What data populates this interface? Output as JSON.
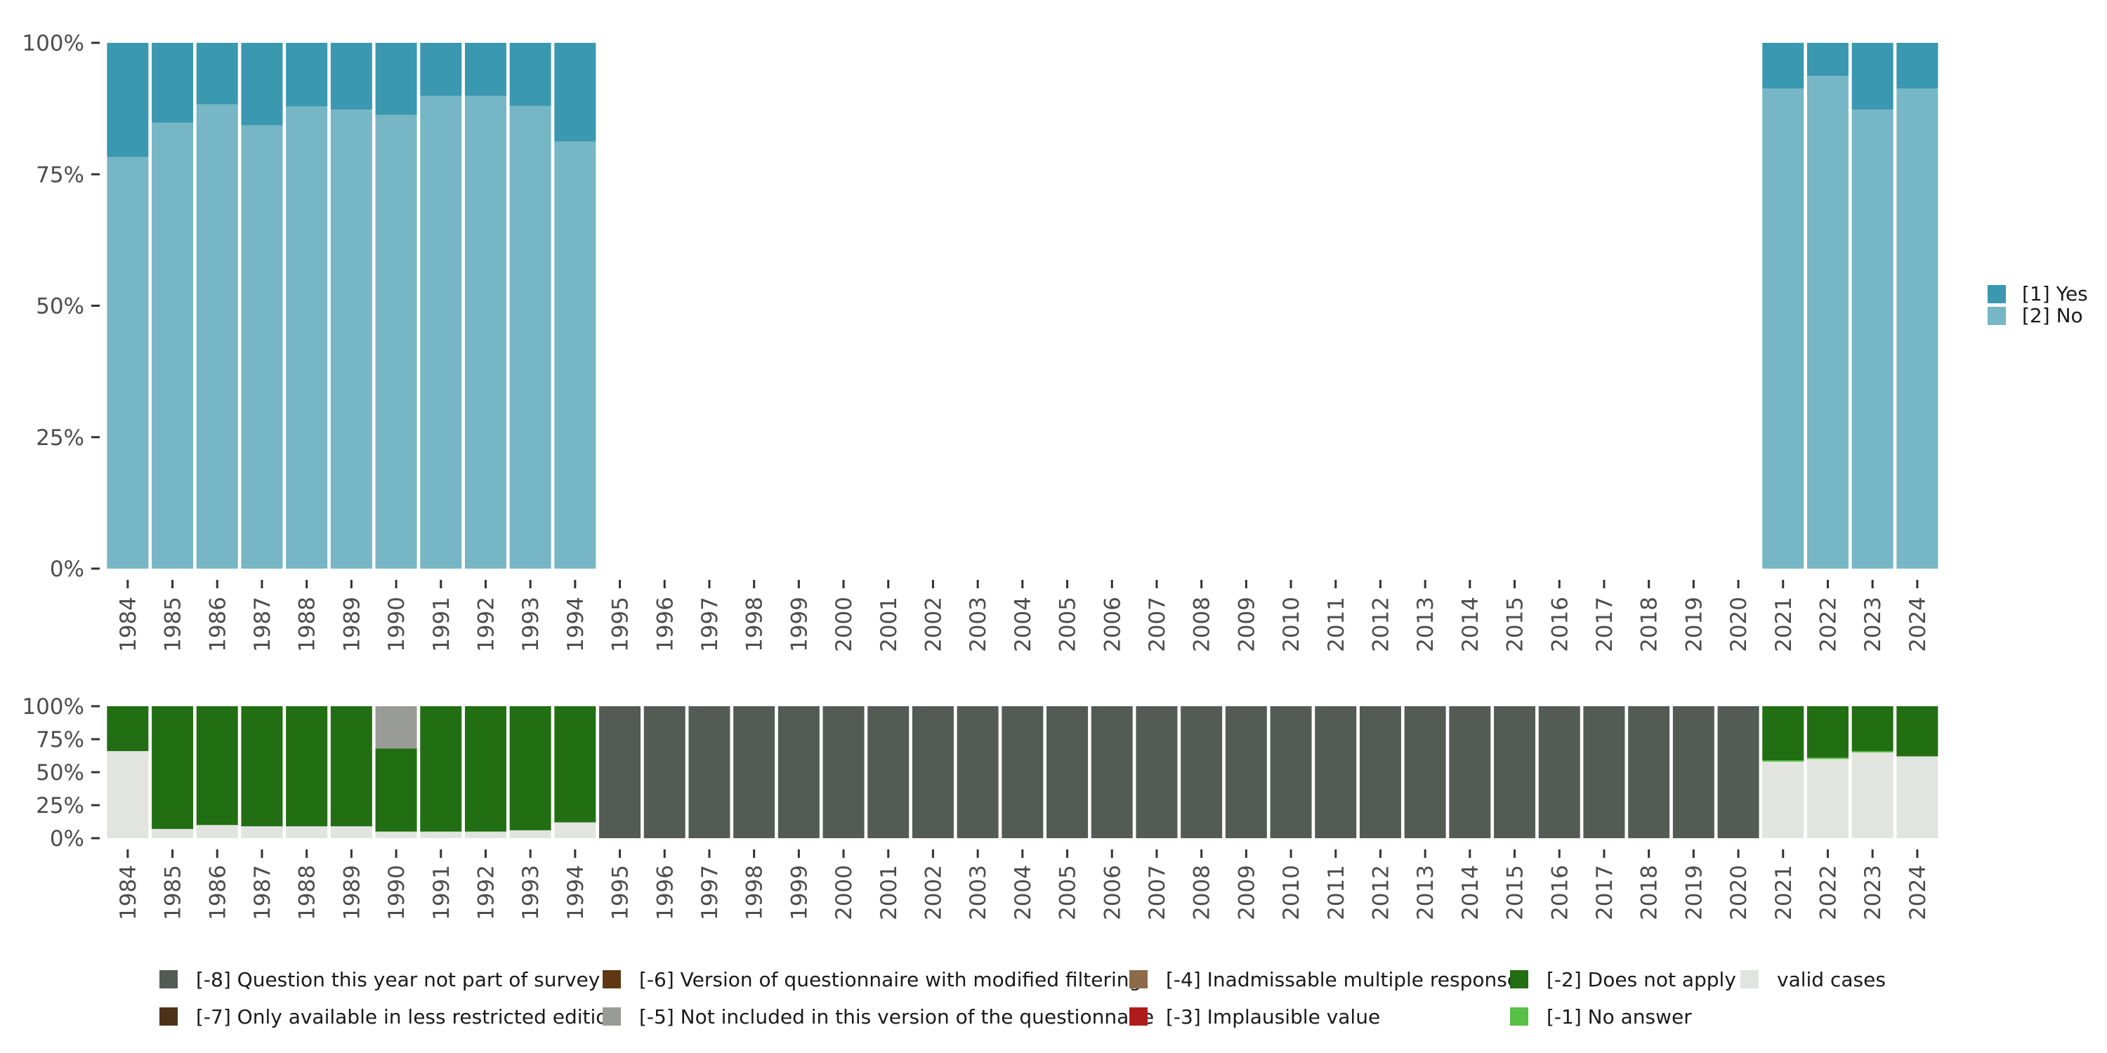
{
  "chart_data": [
    {
      "type": "bar",
      "stacked": true,
      "title": "",
      "xlabel": "",
      "ylabel": "",
      "categories": [
        "1984",
        "1985",
        "1986",
        "1987",
        "1988",
        "1989",
        "1990",
        "1991",
        "1992",
        "1993",
        "1994",
        "1995",
        "1996",
        "1997",
        "1998",
        "1999",
        "2000",
        "2001",
        "2002",
        "2003",
        "2004",
        "2005",
        "2006",
        "2007",
        "2008",
        "2009",
        "2010",
        "2011",
        "2012",
        "2013",
        "2014",
        "2015",
        "2016",
        "2017",
        "2018",
        "2019",
        "2020",
        "2021",
        "2022",
        "2023",
        "2024"
      ],
      "ylim": [
        0,
        100
      ],
      "y_ticks": [
        0,
        25,
        50,
        75,
        100
      ],
      "y_tick_labels": [
        "0%",
        "25%",
        "50%",
        "75%",
        "100%"
      ],
      "series": [
        {
          "name": "[2] No",
          "color": "#76b6c5",
          "values": [
            78.3,
            84.8,
            88.3,
            84.3,
            87.9,
            87.3,
            86.3,
            89.9,
            89.9,
            88.0,
            81.2,
            null,
            null,
            null,
            null,
            null,
            null,
            null,
            null,
            null,
            null,
            null,
            null,
            null,
            null,
            null,
            null,
            null,
            null,
            null,
            null,
            null,
            null,
            null,
            null,
            null,
            null,
            91.3,
            93.7,
            87.3,
            91.3
          ]
        },
        {
          "name": "[1] Yes",
          "color": "#3a98b0",
          "values": [
            21.7,
            15.2,
            11.7,
            15.7,
            12.1,
            12.7,
            13.7,
            10.1,
            10.1,
            12.0,
            18.8,
            null,
            null,
            null,
            null,
            null,
            null,
            null,
            null,
            null,
            null,
            null,
            null,
            null,
            null,
            null,
            null,
            null,
            null,
            null,
            null,
            null,
            null,
            null,
            null,
            null,
            null,
            8.7,
            6.3,
            12.7,
            8.7
          ]
        }
      ],
      "legend": {
        "position": "right",
        "entries": [
          {
            "label": "[1] Yes",
            "color": "#3a98b0"
          },
          {
            "label": "[2] No",
            "color": "#76b6c5"
          }
        ]
      }
    },
    {
      "type": "bar",
      "stacked": true,
      "title": "",
      "xlabel": "",
      "ylabel": "",
      "categories": [
        "1984",
        "1985",
        "1986",
        "1987",
        "1988",
        "1989",
        "1990",
        "1991",
        "1992",
        "1993",
        "1994",
        "1995",
        "1996",
        "1997",
        "1998",
        "1999",
        "2000",
        "2001",
        "2002",
        "2003",
        "2004",
        "2005",
        "2006",
        "2007",
        "2008",
        "2009",
        "2010",
        "2011",
        "2012",
        "2013",
        "2014",
        "2015",
        "2016",
        "2017",
        "2018",
        "2019",
        "2020",
        "2021",
        "2022",
        "2023",
        "2024"
      ],
      "ylim": [
        0,
        100
      ],
      "y_ticks": [
        0,
        25,
        50,
        75,
        100
      ],
      "y_tick_labels": [
        "0%",
        "25%",
        "50%",
        "75%",
        "100%"
      ],
      "series": [
        {
          "name": "valid cases",
          "color": "#e1e4df",
          "values": [
            66,
            7,
            10,
            9,
            9,
            9,
            5,
            5,
            5,
            6,
            12,
            0,
            0,
            0,
            0,
            0,
            0,
            0,
            0,
            0,
            0,
            0,
            0,
            0,
            0,
            0,
            0,
            0,
            0,
            0,
            0,
            0,
            0,
            0,
            0,
            0,
            0,
            58,
            60,
            65,
            62
          ]
        },
        {
          "name": "[-1] No answer",
          "color": "#57c145",
          "values": [
            0,
            0,
            0,
            0,
            0,
            0,
            0,
            0,
            0,
            0,
            0,
            0,
            0,
            0,
            0,
            0,
            0,
            0,
            0,
            0,
            0,
            0,
            0,
            0,
            0,
            0,
            0,
            0,
            0,
            0,
            0,
            0,
            0,
            0,
            0,
            0,
            0,
            1,
            1,
            1,
            0
          ]
        },
        {
          "name": "[-2] Does not apply",
          "color": "#226e12",
          "values": [
            34,
            93,
            90,
            91,
            91,
            91,
            63,
            95,
            95,
            94,
            88,
            0,
            0,
            0,
            0,
            0,
            0,
            0,
            0,
            0,
            0,
            0,
            0,
            0,
            0,
            0,
            0,
            0,
            0,
            0,
            0,
            0,
            0,
            0,
            0,
            0,
            0,
            41,
            39,
            34,
            38
          ]
        },
        {
          "name": "[-5] Not included in this version of the questionnaire",
          "color": "#999c96",
          "values": [
            0,
            0,
            0,
            0,
            0,
            0,
            32,
            0,
            0,
            0,
            0,
            0,
            0,
            0,
            0,
            0,
            0,
            0,
            0,
            0,
            0,
            0,
            0,
            0,
            0,
            0,
            0,
            0,
            0,
            0,
            0,
            0,
            0,
            0,
            0,
            0,
            0,
            0,
            0,
            0,
            0
          ]
        },
        {
          "name": "[-8] Question this year not part of survey",
          "color": "#545b55",
          "values": [
            0,
            0,
            0,
            0,
            0,
            0,
            0,
            0,
            0,
            0,
            0,
            100,
            100,
            100,
            100,
            100,
            100,
            100,
            100,
            100,
            100,
            100,
            100,
            100,
            100,
            100,
            100,
            100,
            100,
            100,
            100,
            100,
            100,
            100,
            100,
            100,
            100,
            0,
            0,
            0,
            0
          ]
        }
      ],
      "legend": {
        "position": "bottom",
        "entries": [
          {
            "label": "[-8] Question this year not part of survey",
            "color": "#545b55"
          },
          {
            "label": "[-7] Only available in less restricted edition",
            "color": "#4b3218"
          },
          {
            "label": "[-6] Version of questionnaire with modified filtering",
            "color": "#5e3812"
          },
          {
            "label": "[-5] Not included in this version of the questionnaire",
            "color": "#999c96"
          },
          {
            "label": "[-4] Inadmissable multiple response",
            "color": "#8d6a4a"
          },
          {
            "label": "[-3] Implausible value",
            "color": "#b01c1c"
          },
          {
            "label": "[-2] Does not apply",
            "color": "#226e12"
          },
          {
            "label": "[-1] No answer",
            "color": "#57c145"
          },
          {
            "label": "valid cases",
            "color": "#e1e4df"
          }
        ]
      }
    }
  ]
}
